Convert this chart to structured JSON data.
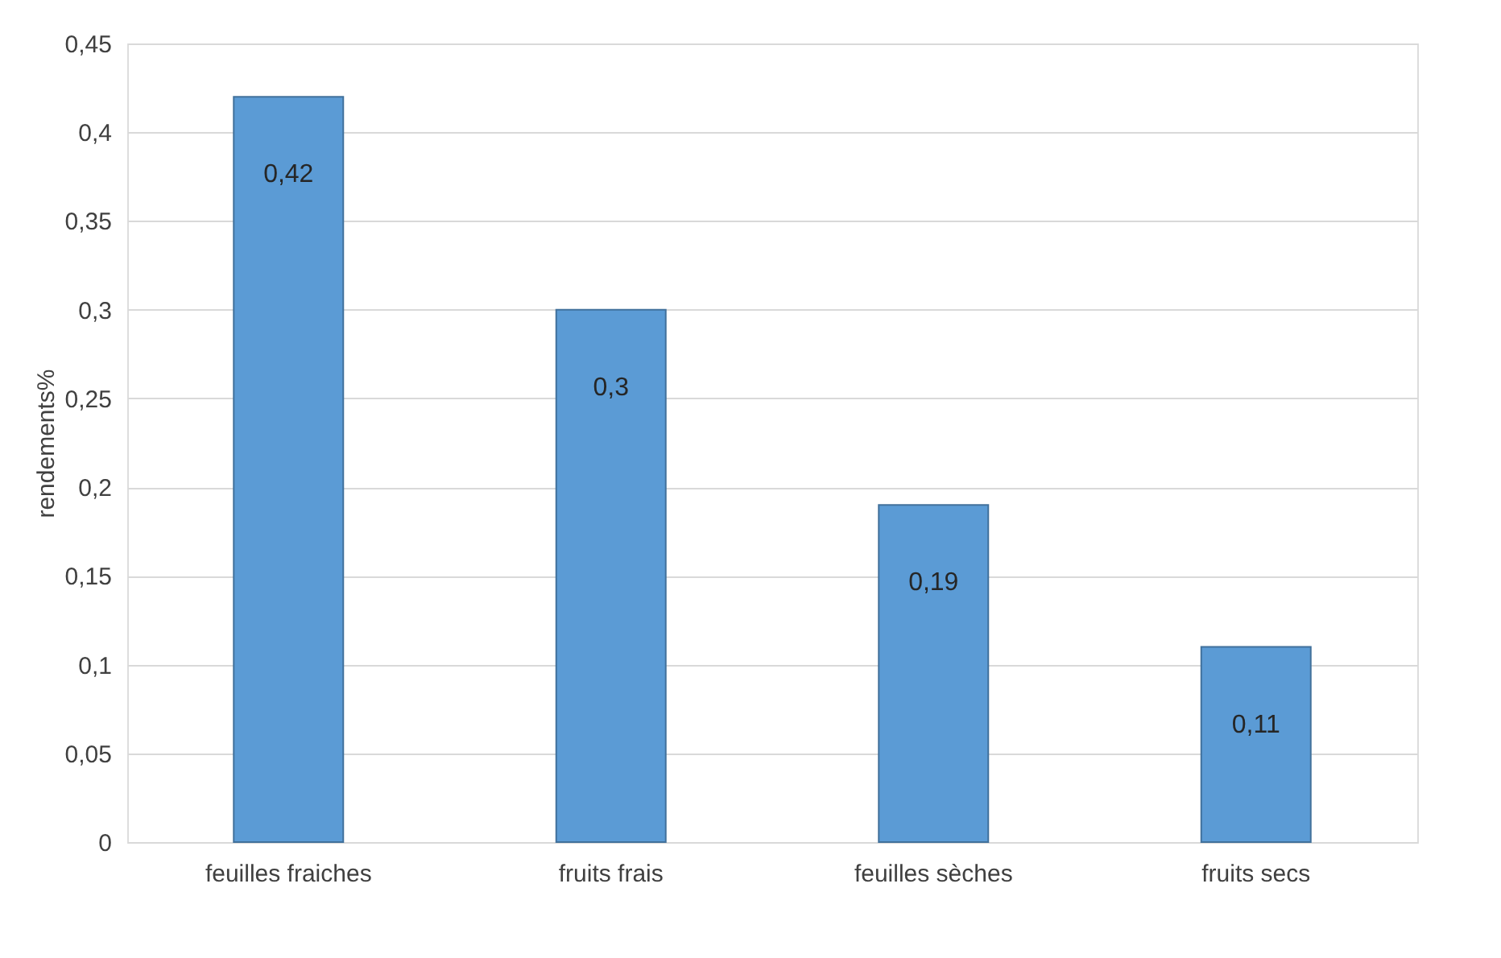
{
  "chart_data": {
    "type": "bar",
    "ylabel": "rendements%",
    "categories": [
      "feuilles fraiches",
      "fruits frais",
      "feuilles sèches",
      "fruits secs"
    ],
    "values": [
      0.42,
      0.3,
      0.19,
      0.11
    ],
    "value_labels": [
      "0,42",
      "0,3",
      "0,19",
      "0,11"
    ],
    "color": "#5b9bd5",
    "ylim": [
      0,
      0.45
    ],
    "yticks": [
      {
        "value": 0,
        "label": "0"
      },
      {
        "value": 0.05,
        "label": "0,05"
      },
      {
        "value": 0.1,
        "label": "0,1"
      },
      {
        "value": 0.15,
        "label": "0,15"
      },
      {
        "value": 0.2,
        "label": "0,2"
      },
      {
        "value": 0.25,
        "label": "0,25"
      },
      {
        "value": 0.3,
        "label": "0,3"
      },
      {
        "value": 0.35,
        "label": "0,35"
      },
      {
        "value": 0.4,
        "label": "0,4"
      },
      {
        "value": 0.45,
        "label": "0,45"
      }
    ],
    "grid": "y"
  }
}
